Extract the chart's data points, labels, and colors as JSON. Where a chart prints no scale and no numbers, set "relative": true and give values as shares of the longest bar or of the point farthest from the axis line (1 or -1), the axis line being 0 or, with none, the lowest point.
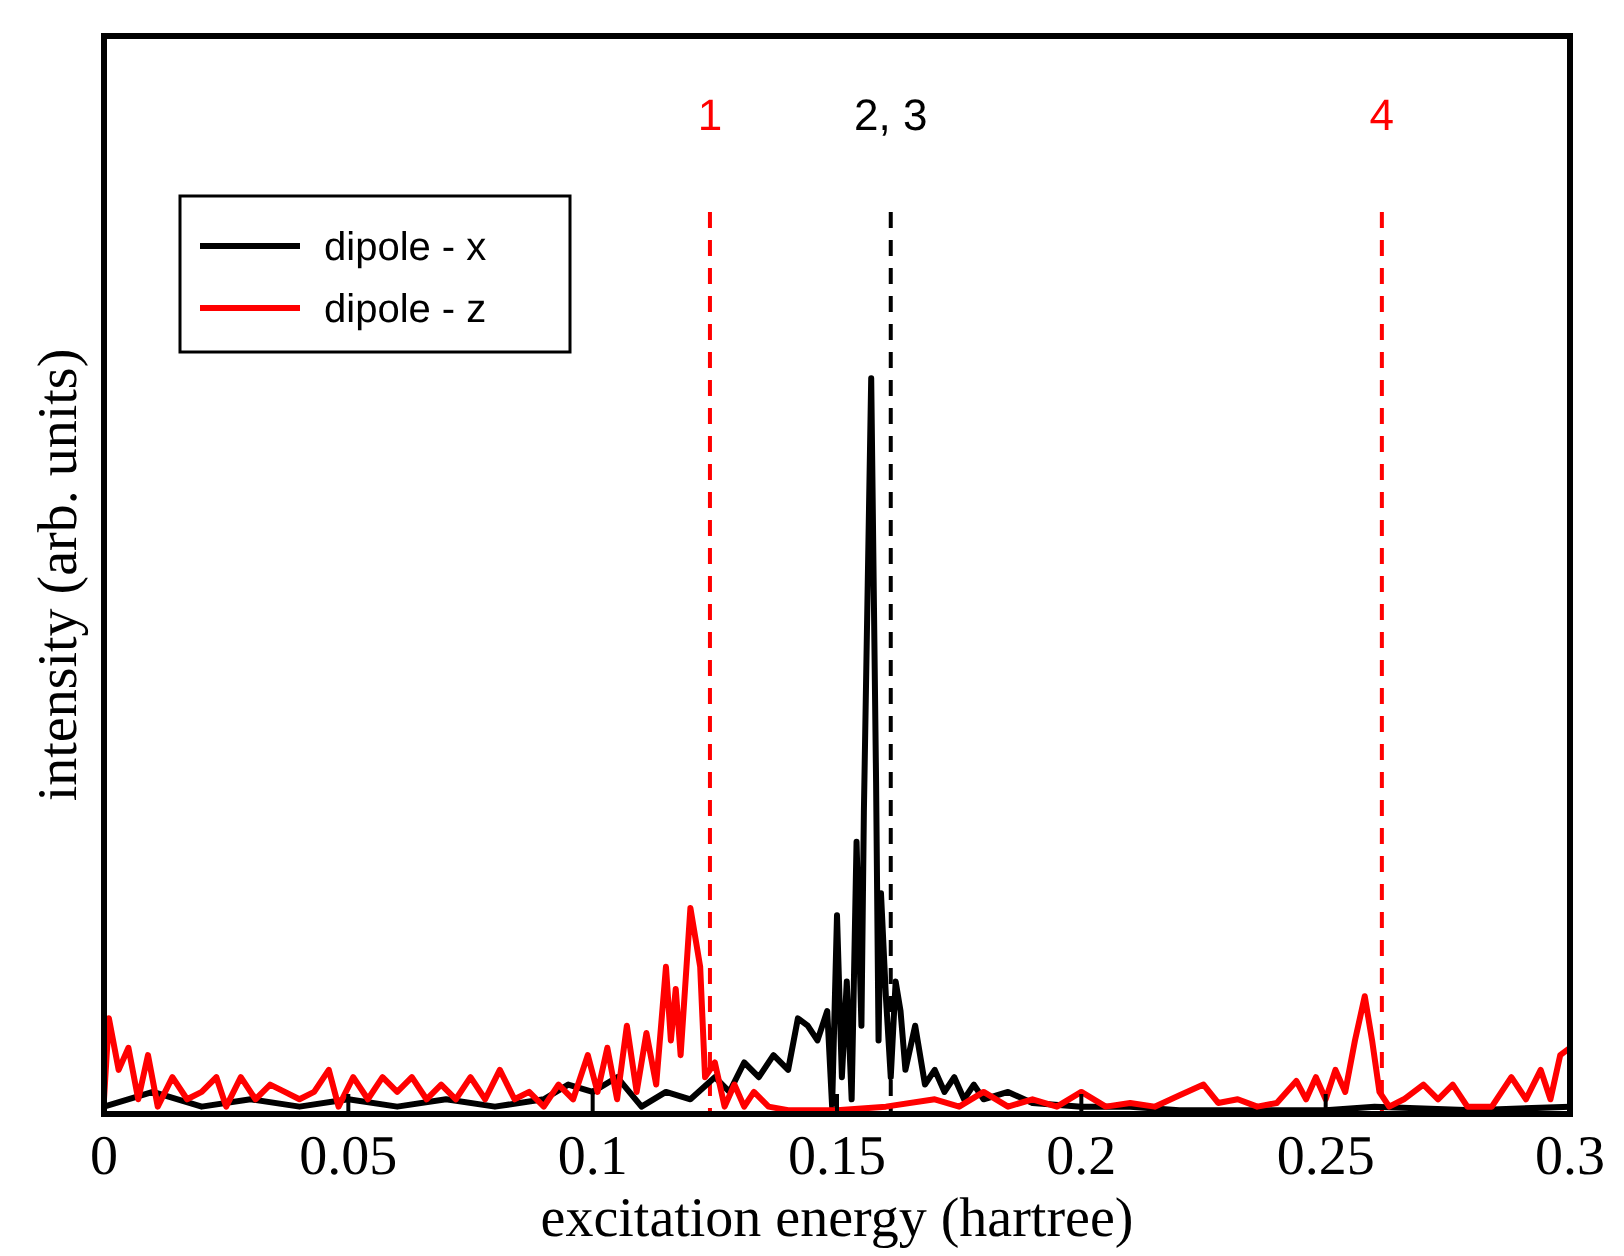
{
  "chart_data": {
    "type": "line",
    "xlabel": "excitation energy (hartree)",
    "ylabel": "intensity (arb. units)",
    "relative": true,
    "xlim": [
      0,
      0.3
    ],
    "xticks": [
      0,
      0.05,
      0.1,
      0.15,
      0.2,
      0.25,
      0.3
    ],
    "tick_labels": "x",
    "legend": "top left",
    "grid": false,
    "marker": "none",
    "line_style": "solid",
    "series": [
      {
        "name": "dipole - x",
        "color": "#000000",
        "x": [
          0,
          0.01,
          0.02,
          0.03,
          0.04,
          0.05,
          0.06,
          0.07,
          0.08,
          0.09,
          0.095,
          0.1,
          0.105,
          0.11,
          0.115,
          0.12,
          0.125,
          0.128,
          0.131,
          0.134,
          0.137,
          0.14,
          0.142,
          0.144,
          0.146,
          0.148,
          0.149,
          0.15,
          0.151,
          0.152,
          0.153,
          0.154,
          0.155,
          0.1555,
          0.157,
          0.158,
          0.1585,
          0.159,
          0.16,
          0.161,
          0.162,
          0.163,
          0.164,
          0.166,
          0.168,
          0.17,
          0.172,
          0.174,
          0.176,
          0.178,
          0.18,
          0.185,
          0.19,
          0.2,
          0.21,
          0.22,
          0.25,
          0.26,
          0.28,
          0.3
        ],
        "values": [
          0.01,
          0.03,
          0.01,
          0.02,
          0.01,
          0.02,
          0.01,
          0.02,
          0.01,
          0.02,
          0.04,
          0.03,
          0.05,
          0.01,
          0.03,
          0.02,
          0.05,
          0.03,
          0.07,
          0.05,
          0.08,
          0.06,
          0.13,
          0.12,
          0.1,
          0.14,
          0.01,
          0.27,
          0.05,
          0.18,
          0.02,
          0.37,
          0.12,
          0.41,
          1,
          0.45,
          0.1,
          0.3,
          0.16,
          0.05,
          0.18,
          0.14,
          0.06,
          0.12,
          0.04,
          0.06,
          0.03,
          0.05,
          0.02,
          0.04,
          0.02,
          0.03,
          0.015,
          0.01,
          0.01,
          0.005,
          0.005,
          0.01,
          0.005,
          0.01
        ]
      },
      {
        "name": "dipole - z",
        "color": "#ff0000",
        "x": [
          0,
          0.001,
          0.003,
          0.005,
          0.007,
          0.009,
          0.011,
          0.014,
          0.017,
          0.02,
          0.023,
          0.025,
          0.028,
          0.031,
          0.034,
          0.037,
          0.04,
          0.043,
          0.046,
          0.048,
          0.051,
          0.054,
          0.057,
          0.06,
          0.063,
          0.066,
          0.069,
          0.072,
          0.075,
          0.078,
          0.081,
          0.084,
          0.087,
          0.09,
          0.093,
          0.096,
          0.099,
          0.101,
          0.103,
          0.105,
          0.107,
          0.109,
          0.111,
          0.113,
          0.115,
          0.116,
          0.117,
          0.118,
          0.12,
          0.122,
          0.123,
          0.125,
          0.127,
          0.129,
          0.131,
          0.133,
          0.136,
          0.14,
          0.15,
          0.16,
          0.17,
          0.175,
          0.18,
          0.185,
          0.19,
          0.195,
          0.2,
          0.205,
          0.21,
          0.215,
          0.22,
          0.225,
          0.228,
          0.232,
          0.236,
          0.24,
          0.244,
          0.246,
          0.248,
          0.25,
          0.252,
          0.254,
          0.256,
          0.258,
          0.2595,
          0.261,
          0.263,
          0.266,
          0.27,
          0.273,
          0.276,
          0.279,
          0.284,
          0.288,
          0.291,
          0.294,
          0.296,
          0.298,
          0.3
        ],
        "values": [
          0.02,
          0.13,
          0.06,
          0.09,
          0.02,
          0.08,
          0.01,
          0.05,
          0.02,
          0.03,
          0.05,
          0.01,
          0.05,
          0.02,
          0.04,
          0.03,
          0.02,
          0.03,
          0.06,
          0.01,
          0.05,
          0.02,
          0.05,
          0.03,
          0.05,
          0.02,
          0.04,
          0.02,
          0.05,
          0.02,
          0.06,
          0.02,
          0.03,
          0.01,
          0.04,
          0.02,
          0.08,
          0.03,
          0.09,
          0.02,
          0.12,
          0.03,
          0.11,
          0.04,
          0.2,
          0.1,
          0.17,
          0.08,
          0.28,
          0.2,
          0.05,
          0.07,
          0.01,
          0.04,
          0.01,
          0.03,
          0.01,
          0.005,
          0.005,
          0.01,
          0.02,
          0.01,
          0.03,
          0.01,
          0.02,
          0.01,
          0.03,
          0.01,
          0.015,
          0.01,
          0.025,
          0.04,
          0.015,
          0.02,
          0.01,
          0.015,
          0.045,
          0.02,
          0.05,
          0.02,
          0.06,
          0.03,
          0.1,
          0.16,
          0.1,
          0.03,
          0.01,
          0.02,
          0.04,
          0.02,
          0.04,
          0.01,
          0.01,
          0.05,
          0.02,
          0.06,
          0.02,
          0.08,
          0.09
        ]
      }
    ],
    "ref_lines": [
      {
        "axis": "x",
        "value": 0.124,
        "color": "#ff0000",
        "line_style": "dashed"
      },
      {
        "axis": "x",
        "value": 0.161,
        "color": "#000000",
        "line_style": "dashed"
      },
      {
        "axis": "x",
        "value": 0.2615,
        "color": "#ff0000",
        "line_style": "dashed"
      }
    ],
    "annotations": [
      "1",
      "2, 3",
      "4"
    ]
  }
}
